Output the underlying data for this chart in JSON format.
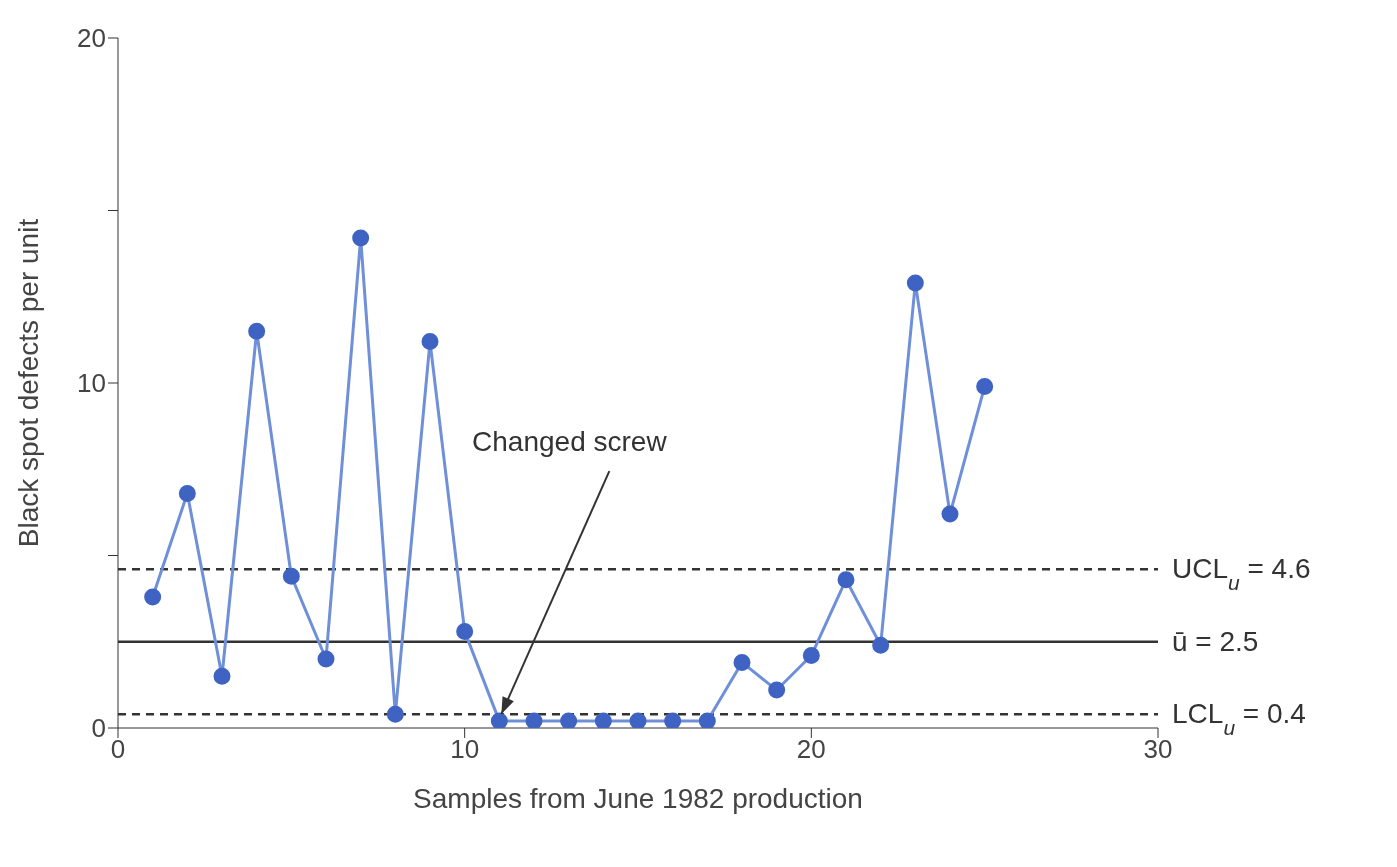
{
  "chart_data": {
    "type": "line",
    "xlabel": "Samples from June 1982 production",
    "ylabel": "Black spot defects per unit",
    "x": [
      1,
      2,
      3,
      4,
      5,
      6,
      7,
      8,
      9,
      10,
      11,
      12,
      13,
      14,
      15,
      16,
      17,
      18,
      19,
      20,
      21,
      22,
      23,
      24,
      25
    ],
    "series": [
      {
        "color": "#6f8fd8",
        "values": [
          3.8,
          6.8,
          1.5,
          11.5,
          4.4,
          2.0,
          14.2,
          0.4,
          11.2,
          2.8,
          0.2,
          0.2,
          0.2,
          0.2,
          0.2,
          0.2,
          0.2,
          1.9,
          1.1,
          2.1,
          4.3,
          2.4,
          12.9,
          6.2,
          9.9
        ]
      }
    ],
    "marker": "circle",
    "line_style": "solid",
    "xlim": [
      0,
      30
    ],
    "xticks": [
      0,
      10,
      20,
      30
    ],
    "ylim": [
      0,
      20
    ],
    "yticks": [
      0,
      {
        "value": 5,
        "label": null
      },
      10,
      {
        "value": 15,
        "label": null
      },
      20
    ],
    "ref_lines": [
      {
        "axis": "y",
        "value": 4.6,
        "label": "UCL$_{u}$ = 4.6",
        "color": "#333333",
        "line_style": "dashed"
      },
      {
        "axis": "y",
        "value": 2.5,
        "label": "ū = 2.5",
        "color": "#333333",
        "line_style": "solid"
      },
      {
        "axis": "y",
        "value": 0.4,
        "label": "LCL$_{u}$ = 0.4",
        "color": "#333333",
        "line_style": "dashed"
      }
    ],
    "annotations": [
      {
        "text": "Changed screw",
        "x": 11,
        "y": 0.2
      }
    ]
  }
}
